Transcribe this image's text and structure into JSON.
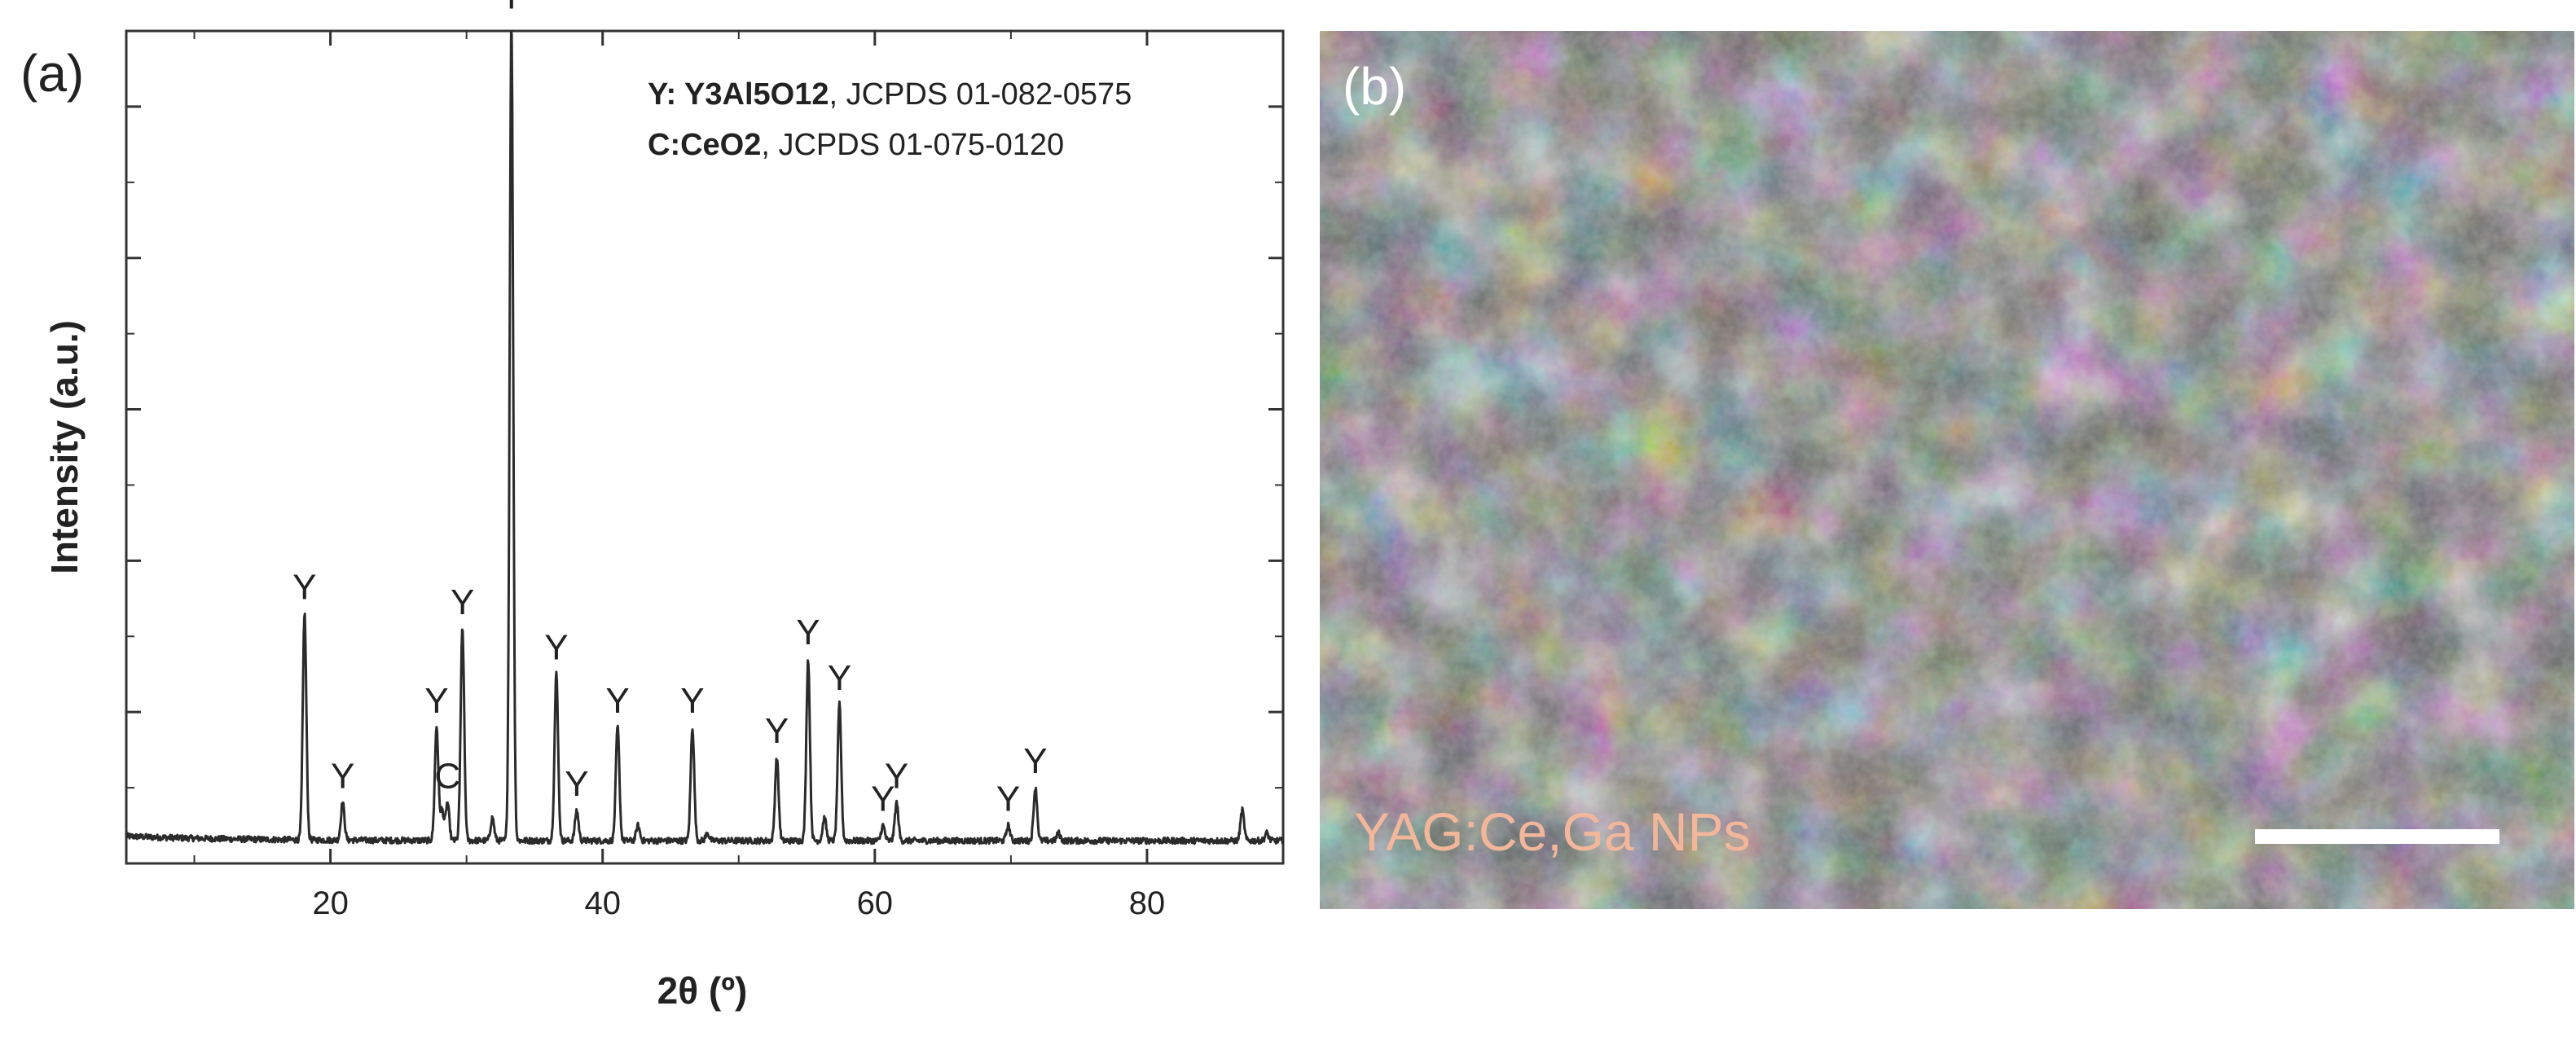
{
  "panel_a": {
    "label": "(a)",
    "legend": [
      {
        "bold": "Y: Y3Al5O12",
        "rest": ", JCPDS 01-082-0575"
      },
      {
        "bold": "C:CeO2",
        "rest": ", JCPDS 01-075-0120"
      }
    ]
  },
  "panel_b": {
    "label": "(b)",
    "caption": "YAG:Ce,Ga NPs",
    "caption_color": "#f2b79a"
  },
  "colors": {
    "line": "#2b2b2b",
    "sem_bg": "#6a6a6a"
  },
  "chart_data": {
    "type": "line",
    "xlabel": "2θ (º)",
    "ylabel": "Intensity (a.u.)",
    "xlim": [
      5,
      90
    ],
    "ylim": [
      0,
      1.1
    ],
    "xticks": [
      20,
      40,
      60,
      80
    ],
    "yticks_labels": false,
    "baseline": 0.03,
    "peaks": [
      {
        "x": 18.1,
        "y": 0.3,
        "label": "Y"
      },
      {
        "x": 20.9,
        "y": 0.05,
        "label": "Y"
      },
      {
        "x": 27.8,
        "y": 0.15,
        "label": "Y"
      },
      {
        "x": 28.6,
        "y": 0.05,
        "label": "C"
      },
      {
        "x": 29.7,
        "y": 0.28,
        "label": "Y"
      },
      {
        "x": 33.3,
        "y": 1.08,
        "label": "Y"
      },
      {
        "x": 36.6,
        "y": 0.22,
        "label": "Y"
      },
      {
        "x": 38.1,
        "y": 0.04,
        "label": "Y"
      },
      {
        "x": 41.1,
        "y": 0.15,
        "label": "Y"
      },
      {
        "x": 46.6,
        "y": 0.15,
        "label": "Y"
      },
      {
        "x": 52.8,
        "y": 0.11,
        "label": "Y"
      },
      {
        "x": 55.1,
        "y": 0.24,
        "label": "Y"
      },
      {
        "x": 57.4,
        "y": 0.18,
        "label": "Y"
      },
      {
        "x": 60.6,
        "y": 0.02,
        "label": "Y"
      },
      {
        "x": 61.6,
        "y": 0.05,
        "label": "Y"
      },
      {
        "x": 69.8,
        "y": 0.02,
        "label": "Y"
      },
      {
        "x": 71.8,
        "y": 0.07,
        "label": "Y"
      },
      {
        "x": 28.2,
        "y": 0.04
      },
      {
        "x": 31.9,
        "y": 0.03
      },
      {
        "x": 42.6,
        "y": 0.02
      },
      {
        "x": 47.7,
        "y": 0.01
      },
      {
        "x": 56.3,
        "y": 0.03
      },
      {
        "x": 73.5,
        "y": 0.01
      },
      {
        "x": 87.0,
        "y": 0.04
      },
      {
        "x": 88.8,
        "y": 0.01
      }
    ]
  }
}
